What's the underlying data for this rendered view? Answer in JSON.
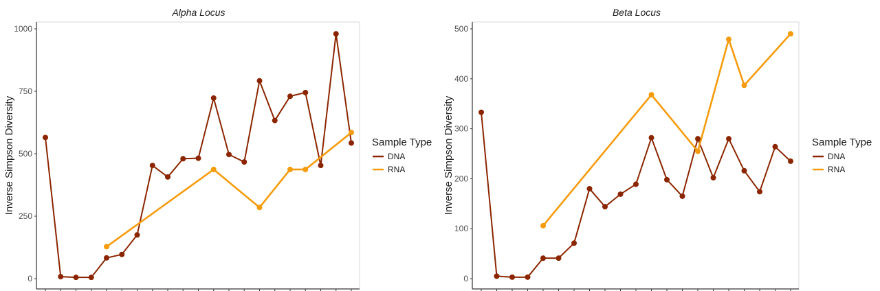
{
  "colors": {
    "DNA": "#8B2500",
    "RNA": "#F59B0C"
  },
  "legend": {
    "title": "Sample Type",
    "placement": "right",
    "entries": [
      "DNA",
      "RNA"
    ]
  },
  "chart_data": [
    {
      "type": "line",
      "title": "Alpha Locus",
      "xlabel": "",
      "ylabel": "Inverse Simpson Diversity",
      "ylim": [
        0,
        1000
      ],
      "yticks": [
        0,
        250,
        500,
        750,
        1000
      ],
      "grid": false,
      "x": [
        1,
        2,
        3,
        4,
        5,
        6,
        7,
        8,
        9,
        10,
        11,
        12,
        13,
        14,
        15,
        16,
        17,
        18,
        19,
        20,
        21
      ],
      "series": [
        {
          "name": "DNA",
          "values": [
            565,
            8,
            5,
            5,
            83,
            97,
            175,
            453,
            407,
            480,
            482,
            723,
            497,
            467,
            792,
            633,
            730,
            745,
            453,
            980,
            543
          ]
        },
        {
          "name": "RNA",
          "values": [
            null,
            null,
            null,
            null,
            128,
            null,
            null,
            null,
            null,
            null,
            null,
            437,
            null,
            null,
            285,
            null,
            437,
            437,
            null,
            null,
            585
          ]
        }
      ]
    },
    {
      "type": "line",
      "title": "Beta Locus",
      "xlabel": "",
      "ylabel": "Inverse Simpson Diversity",
      "ylim": [
        0,
        500
      ],
      "yticks": [
        0,
        100,
        200,
        300,
        400,
        500
      ],
      "grid": false,
      "x": [
        1,
        2,
        3,
        4,
        5,
        6,
        7,
        8,
        9,
        10,
        11,
        12,
        13,
        14,
        15,
        16,
        17,
        18,
        19,
        20,
        21
      ],
      "series": [
        {
          "name": "DNA",
          "values": [
            333,
            5,
            3,
            3,
            41,
            41,
            71,
            180,
            144,
            169,
            189,
            282,
            198,
            165,
            280,
            202,
            280,
            216,
            174,
            264,
            235
          ]
        },
        {
          "name": "RNA",
          "values": [
            null,
            null,
            null,
            null,
            106,
            null,
            null,
            null,
            null,
            null,
            null,
            368,
            null,
            null,
            255,
            null,
            479,
            387,
            null,
            null,
            490
          ]
        }
      ]
    }
  ]
}
